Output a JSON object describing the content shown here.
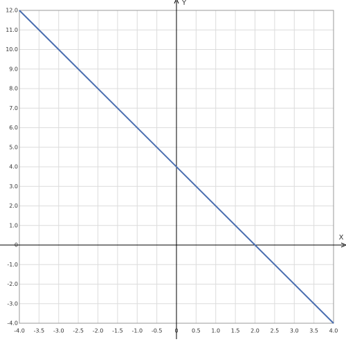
{
  "chart_data": {
    "type": "line",
    "x": [
      -4,
      4
    ],
    "values": [
      12,
      -4
    ],
    "color": "#4a6eb0",
    "x_label": "X",
    "y_label": "Y",
    "xlim": [
      -4,
      4
    ],
    "ylim": [
      -4,
      12
    ],
    "grid": true,
    "xticks": [
      {
        "value": -4,
        "label": "-4.0"
      },
      -3.5,
      {
        "value": -3,
        "label": "-3.0"
      },
      -2.5,
      {
        "value": -2,
        "label": "-2.0"
      },
      -1.5,
      {
        "value": -1,
        "label": "-1.0"
      },
      -0.5,
      0,
      0.5,
      {
        "value": 1,
        "label": "1.0"
      },
      1.5,
      {
        "value": 2,
        "label": "2.0"
      },
      2.5,
      {
        "value": 3,
        "label": "3.0"
      },
      3.5,
      {
        "value": 4,
        "label": "4.0"
      }
    ],
    "yticks": [
      {
        "value": -4,
        "label": "-4.0"
      },
      {
        "value": -3,
        "label": "-3.0"
      },
      {
        "value": -2,
        "label": "-2.0"
      },
      {
        "value": -1,
        "label": "-1.0"
      },
      0,
      {
        "value": 1,
        "label": "1.0"
      },
      {
        "value": 2,
        "label": "2.0"
      },
      {
        "value": 3,
        "label": "3.0"
      },
      {
        "value": 4,
        "label": "4.0"
      },
      {
        "value": 5,
        "label": "5.0"
      },
      {
        "value": 6,
        "label": "6.0"
      },
      {
        "value": 7,
        "label": "7.0"
      },
      {
        "value": 8,
        "label": "8.0"
      },
      {
        "value": 9,
        "label": "9.0"
      },
      {
        "value": 10,
        "label": "10.0"
      },
      {
        "value": 11,
        "label": "11.0"
      },
      {
        "value": 12,
        "label": "12.0"
      }
    ]
  }
}
